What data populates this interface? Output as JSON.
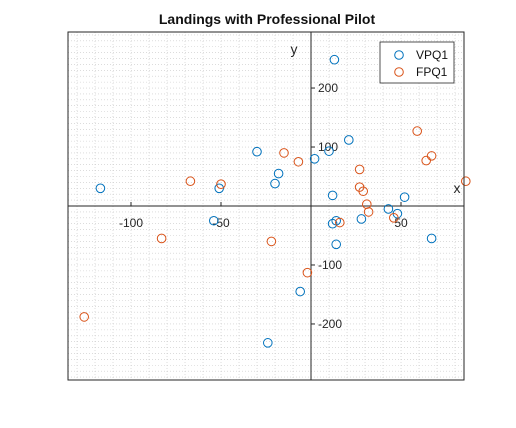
{
  "chart_data": {
    "type": "scatter",
    "title": "Landings with Professional Pilot",
    "xlabel": "x",
    "ylabel": "y",
    "xlim": [
      -135,
      85
    ],
    "ylim": [
      -295,
      295
    ],
    "x_ticks": [
      -100,
      -50,
      50
    ],
    "y_ticks": [
      200,
      100,
      -100,
      -200
    ],
    "minor_grid": true,
    "grid_step": 10,
    "legend_position": "top-right",
    "series": [
      {
        "name": "VPQ1",
        "color": "#0072BD",
        "points": [
          [
            -117,
            30
          ],
          [
            -30,
            92
          ],
          [
            -18,
            55
          ],
          [
            -20,
            38
          ],
          [
            -51,
            30
          ],
          [
            -54,
            -25
          ],
          [
            -6,
            -145
          ],
          [
            -24,
            -232
          ],
          [
            2,
            80
          ],
          [
            10,
            93
          ],
          [
            12,
            18
          ],
          [
            13,
            248
          ],
          [
            21,
            112
          ],
          [
            14,
            -65
          ],
          [
            14,
            -25
          ],
          [
            12,
            -30
          ],
          [
            28,
            -22
          ],
          [
            43,
            -5
          ],
          [
            48,
            -13
          ],
          [
            52,
            15
          ],
          [
            67,
            -55
          ]
        ]
      },
      {
        "name": "FPQ1",
        "color": "#D95319",
        "points": [
          [
            -126,
            -188
          ],
          [
            -83,
            -55
          ],
          [
            -67,
            42
          ],
          [
            -50,
            37
          ],
          [
            -22,
            -60
          ],
          [
            -15,
            90
          ],
          [
            -7,
            75
          ],
          [
            -2,
            -113
          ],
          [
            16,
            -28
          ],
          [
            27,
            62
          ],
          [
            27,
            32
          ],
          [
            29,
            25
          ],
          [
            31,
            3
          ],
          [
            32,
            -10
          ],
          [
            46,
            -20
          ],
          [
            59,
            127
          ],
          [
            64,
            77
          ],
          [
            67,
            85
          ],
          [
            86,
            42
          ]
        ]
      }
    ]
  }
}
